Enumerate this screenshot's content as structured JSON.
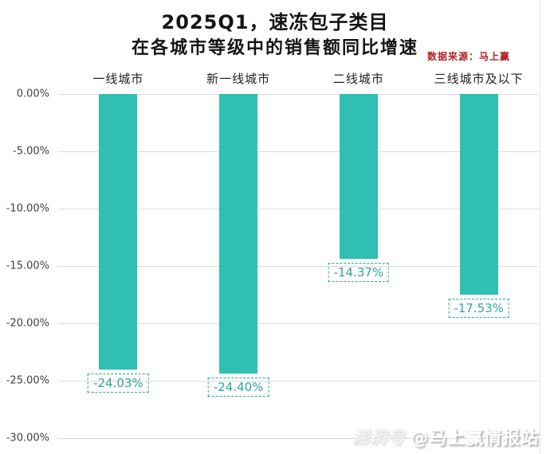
{
  "title": {
    "line1": "2025Q1，速冻包子类目",
    "line2": "在各城市等级中的销售额同比增速"
  },
  "source": "数据来源：马上赢",
  "watermark": {
    "platform": "澎湃号",
    "account": "@马上赢情报站"
  },
  "colors": {
    "bar": "#2FBFB3",
    "data_label": "#2BA69C",
    "source_text": "#B22222",
    "gridline": "#DCDCDC",
    "axis_text": "#3F3F3F"
  },
  "chart_data": {
    "type": "bar",
    "title": "2025Q1，速冻包子类目 在各城市等级中的销售额同比增速",
    "categories": [
      "一线城市",
      "新一线城市",
      "二线城市",
      "三线城市及以下"
    ],
    "values": [
      -24.03,
      -24.4,
      -14.37,
      -17.53
    ],
    "data_labels": [
      "-24.03%",
      "-24.40%",
      "-14.37%",
      "-17.53%"
    ],
    "xlabel": "",
    "ylabel": "",
    "ylim": [
      -30,
      0
    ],
    "yticks": [
      "0.00%",
      "-5.00%",
      "-10.00%",
      "-15.00%",
      "-20.00%",
      "-25.00%",
      "-30.00%"
    ],
    "grid": true,
    "legend": false,
    "category_axis_position": "top",
    "data_label_position": "below-bar"
  }
}
